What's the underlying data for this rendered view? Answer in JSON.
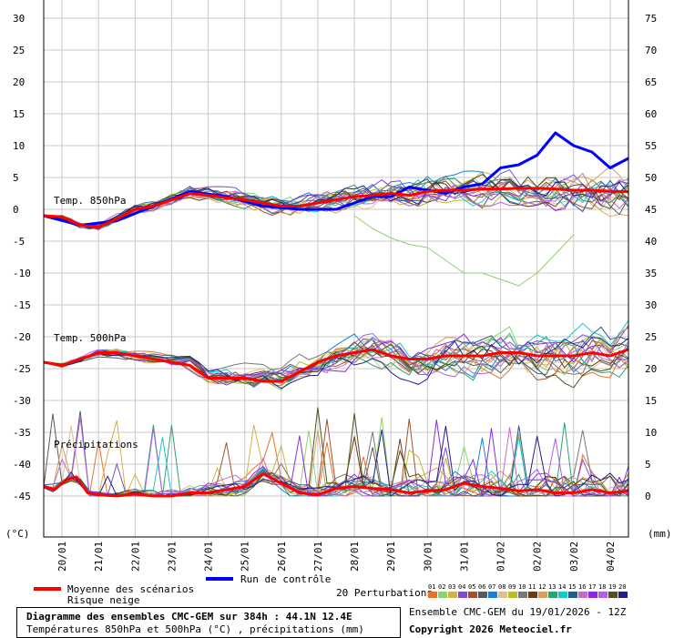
{
  "chart_data": {
    "type": "line",
    "title": "Diagramme des ensembles CMC-GEM sur 384h : 44.1N 12.4E",
    "subtitle": "Températures 850hPa et 500hPa (°C) , précipitations (mm)",
    "ylabel_left": "(°C)",
    "ylabel_right": "(mm)",
    "y_left_ticks": [
      30,
      25,
      20,
      15,
      10,
      5,
      0,
      -5,
      -10,
      -15,
      -20,
      -25,
      -30,
      -35,
      -40,
      -45
    ],
    "y_right_ticks": [
      75,
      70,
      65,
      60,
      55,
      50,
      45,
      40,
      35,
      30,
      25,
      20,
      15,
      10,
      5,
      0
    ],
    "y_left_range": [
      -45,
      30
    ],
    "y_right_range": [
      0,
      75
    ],
    "x_range_days": [
      0,
      16
    ],
    "x_labels": [
      "20/01",
      "21/01",
      "22/01",
      "23/01",
      "24/01",
      "25/01",
      "26/01",
      "27/01",
      "28/01",
      "29/01",
      "30/01",
      "31/01",
      "01/02",
      "02/02",
      "03/02",
      "04/02"
    ],
    "grid": true,
    "panel_labels": [
      "Temp. 850hPa",
      "Temp. 500hPa",
      "Précipitations"
    ],
    "t850_mean": {
      "x": [
        0,
        0.5,
        1,
        1.5,
        2,
        2.5,
        3,
        3.5,
        4,
        4.5,
        5,
        5.5,
        6,
        6.5,
        7,
        7.5,
        8,
        8.5,
        9,
        9.5,
        10,
        10.5,
        11,
        11.5,
        12,
        12.5,
        13,
        13.5,
        14,
        14.5,
        15,
        15.5,
        16
      ],
      "y": [
        -1,
        -1.2,
        -2.5,
        -2.8,
        -1.5,
        0,
        0.5,
        1.5,
        2.5,
        2.2,
        1.8,
        1.5,
        1,
        0.5,
        0.5,
        1,
        1.5,
        2,
        2.2,
        2.5,
        2.2,
        2.8,
        3,
        3,
        3.2,
        3.2,
        3.3,
        3.3,
        3.2,
        3,
        3,
        2.8,
        2.8
      ]
    },
    "t850_control": {
      "x": [
        0,
        1,
        2,
        3,
        4,
        5,
        6,
        7,
        8,
        9,
        9.5,
        10,
        10.5,
        11,
        11.5,
        12,
        12.5,
        13,
        13.5,
        14,
        14.5,
        15,
        15.5,
        16
      ],
      "y": [
        -1,
        -2.5,
        -1.8,
        0.5,
        2.8,
        2,
        0.5,
        0,
        0,
        2,
        2,
        3.5,
        3,
        2.5,
        3.5,
        4,
        6.5,
        7,
        8.5,
        12,
        10,
        9,
        6.5,
        8
      ]
    },
    "t850_outlier": {
      "x": [
        8.5,
        9,
        9.5,
        10,
        10.5,
        11,
        11.5,
        12,
        12.5,
        13,
        13.5,
        14,
        14.5
      ],
      "y": [
        -1,
        -3,
        -4.5,
        -5.5,
        -6,
        -8,
        -10,
        -10,
        -11,
        -12,
        -10,
        -7,
        -4
      ]
    },
    "t500_mean": {
      "x": [
        0,
        0.5,
        1,
        1.5,
        2,
        2.5,
        3,
        3.5,
        4,
        4.5,
        5,
        5.5,
        6,
        6.5,
        7,
        7.5,
        8,
        8.5,
        9,
        9.5,
        10,
        10.5,
        11,
        11.5,
        12,
        12.5,
        13,
        13.5,
        14,
        14.5,
        15,
        15.5,
        16
      ],
      "y": [
        -24,
        -24.5,
        -23.5,
        -22.5,
        -22.5,
        -23,
        -23.5,
        -24,
        -24.5,
        -26.5,
        -26.5,
        -26.5,
        -27,
        -27,
        -25.5,
        -24,
        -23,
        -22.5,
        -22,
        -23,
        -23.5,
        -23.5,
        -23,
        -23,
        -23,
        -22.5,
        -22.5,
        -23,
        -23,
        -23,
        -22.5,
        -23,
        -22
      ]
    },
    "precip_mean": {
      "x": [
        0,
        0.3,
        0.6,
        0.9,
        1.2,
        1.5,
        2,
        2.5,
        3,
        3.5,
        4,
        4.5,
        5,
        5.5,
        6,
        6.5,
        7,
        7.5,
        8,
        8.5,
        9,
        9.5,
        10,
        10.5,
        11,
        11.5,
        12,
        12.5,
        13,
        13.5,
        14,
        14.5,
        15,
        15.5,
        16
      ],
      "y": [
        1.5,
        1,
        2.5,
        3,
        0.5,
        0.2,
        0,
        0.3,
        0,
        0,
        0.5,
        0.5,
        1,
        1.5,
        3.5,
        2,
        0.5,
        0.2,
        1.2,
        1.5,
        1.2,
        1,
        0.5,
        0.8,
        1,
        2,
        1.5,
        1.2,
        0.8,
        1,
        0.5,
        0.5,
        1,
        0.5,
        0.8
      ]
    },
    "legend": {
      "mean_label": "Moyenne des scénarios",
      "snow_label": "Risque neige",
      "control_label": "Run de contrôle",
      "perturbations_label": "20 Perturbations",
      "perturbation_ids": [
        "01",
        "02",
        "03",
        "04",
        "05",
        "06",
        "07",
        "08",
        "09",
        "10",
        "11",
        "12",
        "13",
        "14",
        "15",
        "16",
        "17",
        "18",
        "19",
        "20"
      ],
      "perturbation_colors": [
        "#e8702a",
        "#8fd16e",
        "#d2b24a",
        "#7c50c8",
        "#a0522d",
        "#5a5a5a",
        "#1a7fd6",
        "#e0c090",
        "#bcbc30",
        "#777777",
        "#6b3c10",
        "#d8a060",
        "#30a070",
        "#18c8c8",
        "#2a5a8a",
        "#c070c0",
        "#8a2be2",
        "#b060e0",
        "#505020",
        "#202080"
      ],
      "mean_color": "#ff0000",
      "control_color": "#0000ff"
    }
  },
  "footer": {
    "title": "Diagramme des ensembles CMC-GEM sur 384h : 44.1N 12.4E",
    "subtitle": "Températures 850hPa et 500hPa (°C) , précipitations (mm)",
    "ensemble_label": "Ensemble CMC-GEM du 19/01/2026 - 12Z",
    "copyright": "Copyright 2026 Meteociel.fr"
  }
}
